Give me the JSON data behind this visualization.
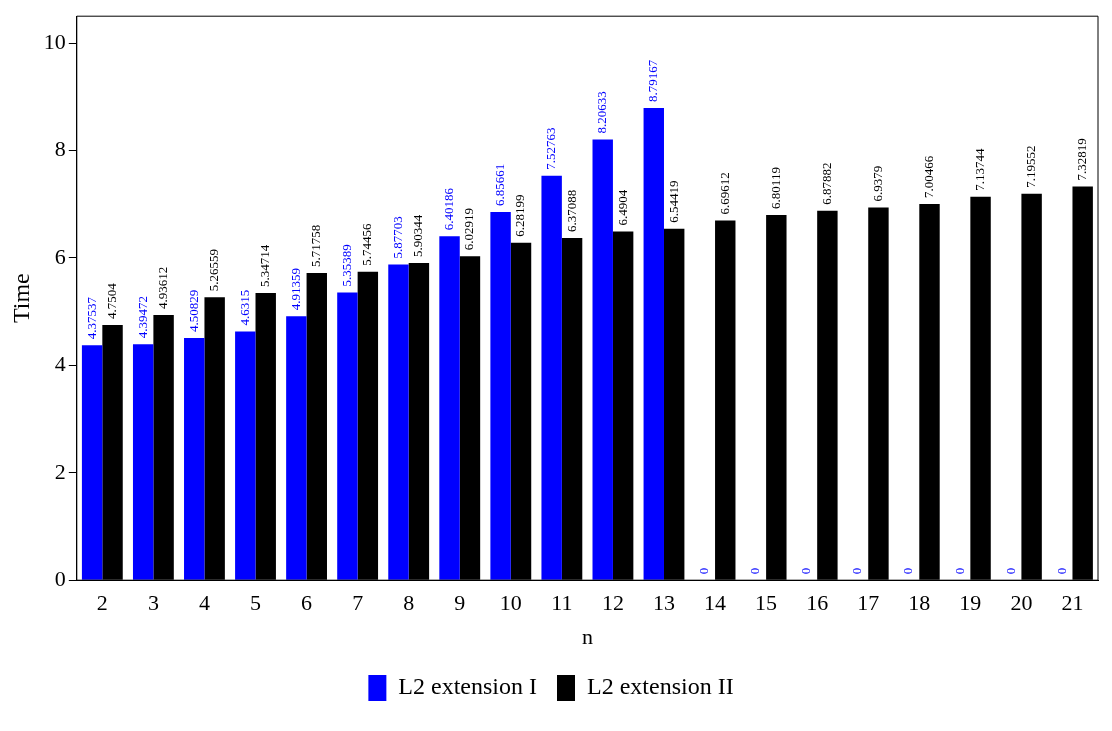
{
  "chart_data": {
    "type": "bar",
    "xlabel": "n",
    "ylabel": "Time",
    "categories": [
      "2",
      "3",
      "4",
      "5",
      "6",
      "7",
      "8",
      "9",
      "10",
      "11",
      "12",
      "13",
      "14",
      "15",
      "16",
      "17",
      "18",
      "19",
      "20",
      "21"
    ],
    "series": [
      {
        "name": "L2 extension I",
        "color": "#0000ff",
        "values": [
          4.37537,
          4.39472,
          4.50829,
          4.6315,
          4.91359,
          5.35389,
          5.87703,
          6.40186,
          6.85661,
          7.52763,
          8.20633,
          8.79167,
          0,
          0,
          0,
          0,
          0,
          0,
          0,
          0
        ]
      },
      {
        "name": "L2 extension II",
        "color": "#000000",
        "values": [
          4.7504,
          4.93612,
          5.26559,
          5.34714,
          5.71758,
          5.74456,
          5.90344,
          6.02919,
          6.28199,
          6.37088,
          6.4904,
          6.54419,
          6.69612,
          6.80119,
          6.87882,
          6.9379,
          7.00466,
          7.13744,
          7.19552,
          7.32819
        ]
      }
    ],
    "ylim": [
      0,
      10.5
    ],
    "yticks": [
      0,
      2,
      4,
      6,
      8,
      10
    ],
    "grid": false,
    "legend": "bottom",
    "data_labels": true
  }
}
